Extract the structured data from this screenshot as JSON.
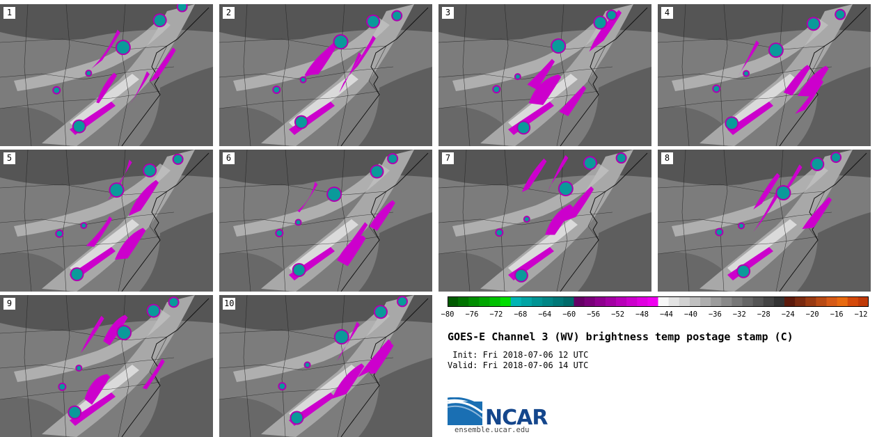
{
  "panels": [
    {
      "label": "1"
    },
    {
      "label": "2"
    },
    {
      "label": "3"
    },
    {
      "label": "4"
    },
    {
      "label": "5"
    },
    {
      "label": "6"
    },
    {
      "label": "7"
    },
    {
      "label": "8"
    },
    {
      "label": "9"
    },
    {
      "label": "10"
    }
  ],
  "colorbar": {
    "ticks": [
      "−80",
      "−76",
      "−72",
      "−68",
      "−64",
      "−60",
      "−56",
      "−52",
      "−48",
      "−44",
      "−40",
      "−36",
      "−32",
      "−28",
      "−24",
      "−20",
      "−16",
      "−12"
    ],
    "colors": [
      "#005a00",
      "#007300",
      "#008d00",
      "#00a600",
      "#00c000",
      "#00dd00",
      "#00b4b4",
      "#00a4a4",
      "#009494",
      "#008686",
      "#007878",
      "#006a6a",
      "#660066",
      "#7a007a",
      "#8f008f",
      "#a300a3",
      "#b800b8",
      "#cc00cc",
      "#e000e0",
      "#f000f0",
      "#f8f8f8",
      "#e4e4e4",
      "#d2d2d2",
      "#c0c0c0",
      "#aeaeae",
      "#9c9c9c",
      "#8a8a8a",
      "#787878",
      "#666666",
      "#555555",
      "#444444",
      "#333333",
      "#5c1a0c",
      "#7a2a10",
      "#993a12",
      "#b84a14",
      "#d65a16",
      "#e86a10",
      "#d44a0a",
      "#c03a08"
    ]
  },
  "title": "GOES-E Channel 3 (WV) brightness temp postage stamp (C)",
  "init": " Init: Fri 2018-07-06 12 UTC",
  "valid": "Valid: Fri 2018-07-06 14 UTC",
  "logo": {
    "name": "NCAR",
    "url": "ensemble.ucar.edu"
  }
}
